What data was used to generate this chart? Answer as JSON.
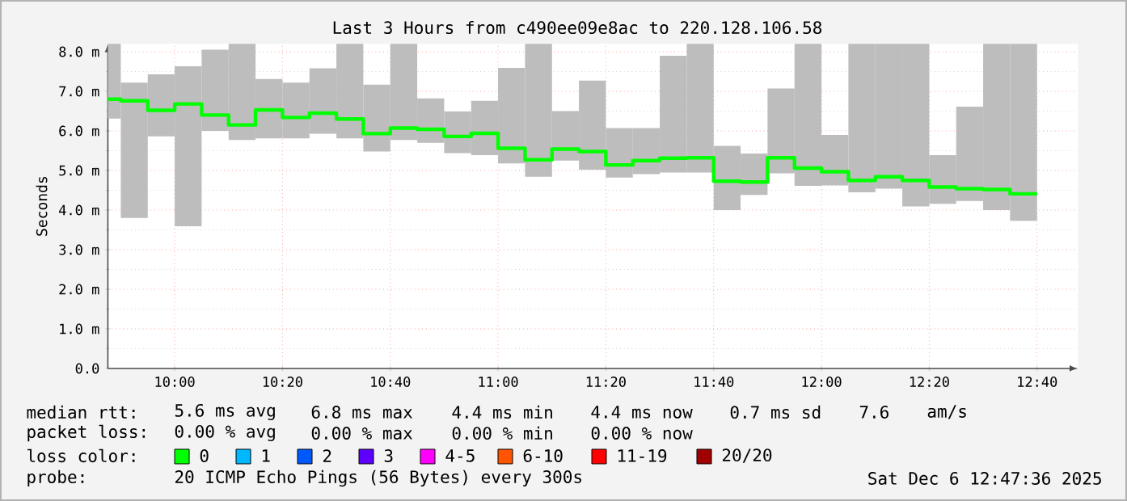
{
  "chart_data": {
    "type": "step",
    "title": "Last 3 Hours from c490ee09e8ac to 220.128.106.58",
    "ylabel": "Seconds",
    "x": [
      9.7933,
      9.8333,
      9.9167,
      10,
      10.0833,
      10.1667,
      10.25,
      10.3333,
      10.4167,
      10.5,
      10.5833,
      10.6667,
      10.75,
      10.8333,
      10.9167,
      11,
      11.0833,
      11.1667,
      11.25,
      11.3333,
      11.4167,
      11.5,
      11.5833,
      11.6667,
      11.75,
      11.8333,
      11.9167,
      12,
      12.0833,
      12.1667,
      12.25,
      12.3333,
      12.4167,
      12.5,
      12.5833,
      12.6667
    ],
    "series": [
      {
        "color": "#00ff00",
        "values": [
          6.8,
          6.76,
          6.52,
          6.68,
          6.4,
          6.15,
          6.53,
          6.34,
          6.45,
          6.3,
          5.93,
          6.07,
          6.04,
          5.86,
          5.94,
          5.56,
          5.27,
          5.54,
          5.48,
          5.14,
          5.25,
          5.31,
          5.32,
          4.73,
          4.71,
          5.32,
          5.06,
          4.97,
          4.75,
          4.84,
          4.75,
          4.58,
          4.54,
          4.52,
          4.41,
          4.41
        ],
        "lower": [
          6.31,
          3.8,
          5.86,
          3.59,
          6.0,
          5.77,
          5.81,
          5.81,
          5.93,
          5.81,
          5.48,
          5.77,
          5.7,
          5.44,
          5.39,
          5.18,
          4.84,
          5.25,
          5.02,
          4.82,
          4.91,
          4.95,
          4.95,
          4.0,
          4.38,
          4.93,
          4.61,
          4.62,
          4.45,
          4.54,
          4.09,
          4.16,
          4.23,
          4.0,
          3.73,
          3.73
        ],
        "upper": [
          8.2,
          7.22,
          7.43,
          7.63,
          8.05,
          8.2,
          7.31,
          7.22,
          7.58,
          8.2,
          7.17,
          8.2,
          6.82,
          6.49,
          6.76,
          7.59,
          8.2,
          6.5,
          7.27,
          6.07,
          6.07,
          7.9,
          8.2,
          5.62,
          5.43,
          7.07,
          8.2,
          5.9,
          8.2,
          8.2,
          8.2,
          5.39,
          6.61,
          8.2,
          8.2,
          8.2
        ]
      }
    ],
    "xlim": [
      9.7933,
      12.7933
    ],
    "ylim": [
      0,
      8.2
    ],
    "xticks": [
      {
        "value": 10,
        "label": "10:00"
      },
      {
        "value": 10.3333,
        "label": "10:20"
      },
      {
        "value": 10.6667,
        "label": "10:40"
      },
      {
        "value": 11,
        "label": "11:00"
      },
      {
        "value": 11.3333,
        "label": "11:20"
      },
      {
        "value": 11.6667,
        "label": "11:40"
      },
      {
        "value": 12,
        "label": "12:00"
      },
      {
        "value": 12.3333,
        "label": "12:20"
      },
      {
        "value": 12.6667,
        "label": "12:40"
      }
    ],
    "yticks": [
      {
        "value": 0,
        "label": "0.0"
      },
      {
        "value": 1,
        "label": "1.0 m"
      },
      {
        "value": 2,
        "label": "2.0 m"
      },
      {
        "value": 3,
        "label": "3.0 m"
      },
      {
        "value": 4,
        "label": "4.0 m"
      },
      {
        "value": 5,
        "label": "5.0 m"
      },
      {
        "value": 6,
        "label": "6.0 m"
      },
      {
        "value": 7,
        "label": "7.0 m"
      },
      {
        "value": 8,
        "label": "8.0 m"
      }
    ],
    "grid": true,
    "line_style": "solid",
    "marker": "none",
    "annotations": [
      "median rtt:",
      "5.6 ms avg",
      "6.8 ms max",
      "4.4 ms min",
      "4.4 ms now",
      "0.7 ms sd",
      "7.6",
      "am/s",
      "packet loss:",
      "0.00 % avg",
      "0.00 % max",
      "0.00 % min",
      "0.00 % now",
      "loss color:",
      "0",
      "1",
      "2",
      "3",
      "4-5",
      "6-10",
      "11-19",
      "20/20",
      "probe:",
      "20 ICMP Echo Pings (56 Bytes) every 300s",
      "Sat Dec 6 12:47:36 2025"
    ]
  }
}
